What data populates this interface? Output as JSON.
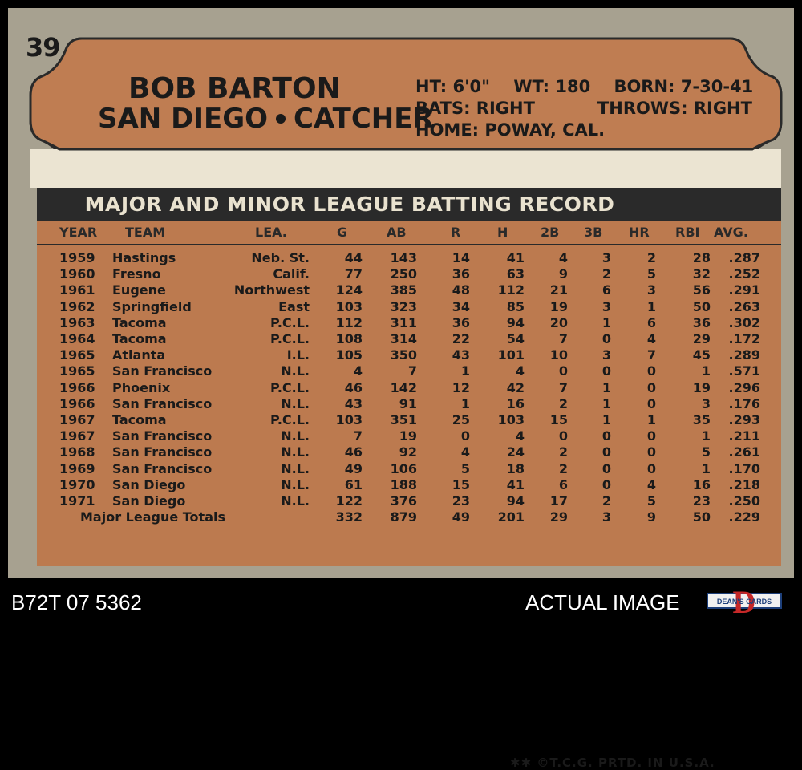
{
  "card": {
    "number": "39",
    "player_name": "BOB BARTON",
    "team": "SAN DIEGO",
    "position": "CATCHER",
    "bio": {
      "ht": "HT: 6'0\"",
      "wt": "WT: 180",
      "born": "BORN: 7-30-41",
      "bats": "BATS: RIGHT",
      "throws": "THROWS: RIGHT",
      "home": "HOME: POWAY, CAL."
    },
    "record_title": "MAJOR AND MINOR LEAGUE BATTING RECORD",
    "columns": [
      "YEAR",
      "TEAM",
      "LEA.",
      "G",
      "AB",
      "R",
      "H",
      "2B",
      "3B",
      "HR",
      "RBI",
      "AVG."
    ],
    "rows": [
      {
        "year": "1959",
        "team": "Hastings",
        "lea": "Neb. St.",
        "g": "44",
        "ab": "143",
        "r": "14",
        "h": "41",
        "d": "4",
        "t": "3",
        "hr": "2",
        "rbi": "28",
        "avg": ".287"
      },
      {
        "year": "1960",
        "team": "Fresno",
        "lea": "Calif.",
        "g": "77",
        "ab": "250",
        "r": "36",
        "h": "63",
        "d": "9",
        "t": "2",
        "hr": "5",
        "rbi": "32",
        "avg": ".252"
      },
      {
        "year": "1961",
        "team": "Eugene",
        "lea": "Northwest",
        "g": "124",
        "ab": "385",
        "r": "48",
        "h": "112",
        "d": "21",
        "t": "6",
        "hr": "3",
        "rbi": "56",
        "avg": ".291"
      },
      {
        "year": "1962",
        "team": "Springfield",
        "lea": "East",
        "g": "103",
        "ab": "323",
        "r": "34",
        "h": "85",
        "d": "19",
        "t": "3",
        "hr": "1",
        "rbi": "50",
        "avg": ".263"
      },
      {
        "year": "1963",
        "team": "Tacoma",
        "lea": "P.C.L.",
        "g": "112",
        "ab": "311",
        "r": "36",
        "h": "94",
        "d": "20",
        "t": "1",
        "hr": "6",
        "rbi": "36",
        "avg": ".302"
      },
      {
        "year": "1964",
        "team": "Tacoma",
        "lea": "P.C.L.",
        "g": "108",
        "ab": "314",
        "r": "22",
        "h": "54",
        "d": "7",
        "t": "0",
        "hr": "4",
        "rbi": "29",
        "avg": ".172"
      },
      {
        "year": "1965",
        "team": "Atlanta",
        "lea": "I.L.",
        "g": "105",
        "ab": "350",
        "r": "43",
        "h": "101",
        "d": "10",
        "t": "3",
        "hr": "7",
        "rbi": "45",
        "avg": ".289"
      },
      {
        "year": "1965",
        "team": "San Francisco",
        "lea": "N.L.",
        "g": "4",
        "ab": "7",
        "r": "1",
        "h": "4",
        "d": "0",
        "t": "0",
        "hr": "0",
        "rbi": "1",
        "avg": ".571"
      },
      {
        "year": "1966",
        "team": "Phoenix",
        "lea": "P.C.L.",
        "g": "46",
        "ab": "142",
        "r": "12",
        "h": "42",
        "d": "7",
        "t": "1",
        "hr": "0",
        "rbi": "19",
        "avg": ".296"
      },
      {
        "year": "1966",
        "team": "San Francisco",
        "lea": "N.L.",
        "g": "43",
        "ab": "91",
        "r": "1",
        "h": "16",
        "d": "2",
        "t": "1",
        "hr": "0",
        "rbi": "3",
        "avg": ".176"
      },
      {
        "year": "1967",
        "team": "Tacoma",
        "lea": "P.C.L.",
        "g": "103",
        "ab": "351",
        "r": "25",
        "h": "103",
        "d": "15",
        "t": "1",
        "hr": "1",
        "rbi": "35",
        "avg": ".293"
      },
      {
        "year": "1967",
        "team": "San Francisco",
        "lea": "N.L.",
        "g": "7",
        "ab": "19",
        "r": "0",
        "h": "4",
        "d": "0",
        "t": "0",
        "hr": "0",
        "rbi": "1",
        "avg": ".211"
      },
      {
        "year": "1968",
        "team": "San Francisco",
        "lea": "N.L.",
        "g": "46",
        "ab": "92",
        "r": "4",
        "h": "24",
        "d": "2",
        "t": "0",
        "hr": "0",
        "rbi": "5",
        "avg": ".261"
      },
      {
        "year": "1969",
        "team": "San Francisco",
        "lea": "N.L.",
        "g": "49",
        "ab": "106",
        "r": "5",
        "h": "18",
        "d": "2",
        "t": "0",
        "hr": "0",
        "rbi": "1",
        "avg": ".170"
      },
      {
        "year": "1970",
        "team": "San Diego",
        "lea": "N.L.",
        "g": "61",
        "ab": "188",
        "r": "15",
        "h": "41",
        "d": "6",
        "t": "0",
        "hr": "4",
        "rbi": "16",
        "avg": ".218"
      },
      {
        "year": "1971",
        "team": "San Diego",
        "lea": "N.L.",
        "g": "122",
        "ab": "376",
        "r": "23",
        "h": "94",
        "d": "17",
        "t": "2",
        "hr": "5",
        "rbi": "23",
        "avg": ".250"
      }
    ],
    "totals": {
      "label": "Major League Totals",
      "g": "332",
      "ab": "879",
      "r": "49",
      "h": "201",
      "d": "29",
      "t": "3",
      "hr": "9",
      "rbi": "50",
      "avg": ".229"
    },
    "footer": "✱✱ ©T.C.G. PRTD. IN U.S.A."
  },
  "bottom": {
    "code": "B72T 07 5362",
    "actual_image": "ACTUAL IMAGE",
    "logo_text": "DEAN'S CARDS",
    "logo_letter": "D"
  },
  "colors": {
    "card_border": "#a7a190",
    "orange": "#bc7a4f",
    "header_bg": "#bf7d52",
    "dark": "#2a2a2a"
  }
}
